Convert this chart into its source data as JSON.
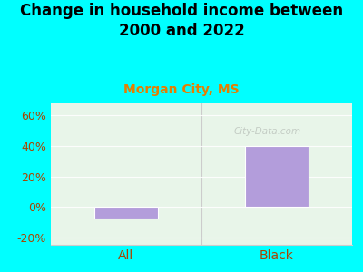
{
  "title": "Change in household income between\n2000 and 2022",
  "subtitle": "Morgan City, MS",
  "categories": [
    "All",
    "Black"
  ],
  "values": [
    -8,
    40
  ],
  "bar_color": "#b39ddb",
  "background_color": "#00FFFF",
  "plot_bg": "#e8f5e9",
  "ylim": [
    -25,
    68
  ],
  "yticks": [
    -20,
    0,
    20,
    40,
    60
  ],
  "ytick_labels": [
    "-20%",
    "0%",
    "20%",
    "40%",
    "60%"
  ],
  "title_fontsize": 12,
  "subtitle_fontsize": 10,
  "subtitle_color": "#e67e00",
  "tick_color": "#aa4400",
  "bar_width": 0.42,
  "watermark": "City-Data.com"
}
